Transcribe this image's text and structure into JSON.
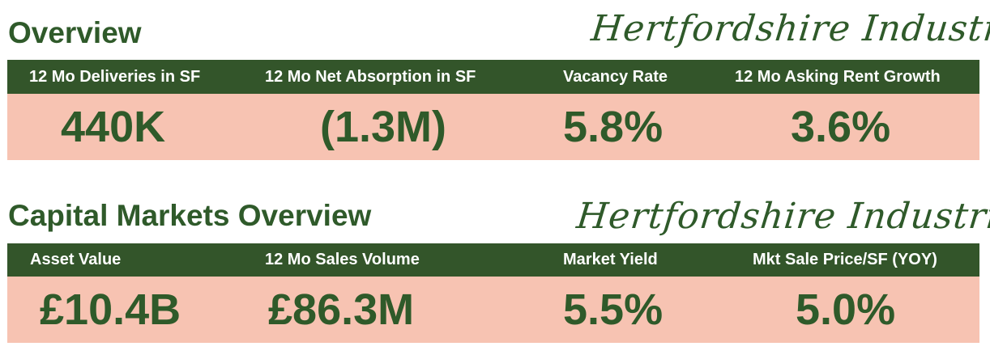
{
  "overview": {
    "heading": "Overview",
    "market_name": "Hertfordshire Industrial",
    "metrics": [
      {
        "label": "12 Mo Deliveries in SF",
        "value": "440K"
      },
      {
        "label": "12 Mo Net Absorption in SF",
        "value": "(1.3M)"
      },
      {
        "label": "Vacancy Rate",
        "value": "5.8%"
      },
      {
        "label": "12 Mo Asking Rent Growth",
        "value": "3.6%"
      }
    ]
  },
  "capital_markets": {
    "heading": "Capital Markets Overview",
    "market_name": "Hertfordshire Industrial",
    "metrics": [
      {
        "label": "Asset Value",
        "value": "£10.4B"
      },
      {
        "label": "12 Mo Sales Volume",
        "value": "£86.3M"
      },
      {
        "label": "Market Yield",
        "value": "5.5%"
      },
      {
        "label": "Mkt Sale Price/SF (YOY)",
        "value": "5.0%"
      }
    ]
  },
  "colors": {
    "brand_green": "#33552a",
    "value_green": "#2f5a2a",
    "value_background": "#f7c3b2",
    "header_text": "#ffffff"
  }
}
